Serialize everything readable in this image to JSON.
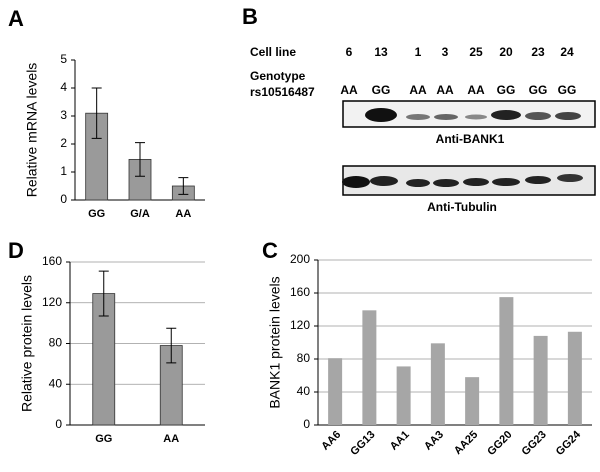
{
  "chart_data": [
    {
      "type": "bar",
      "panel": "A",
      "ylabel": "Relative mRNA levels",
      "categories": [
        "GG",
        "G/A",
        "AA"
      ],
      "values": [
        3.1,
        1.45,
        0.5
      ],
      "errors": [
        0.9,
        0.6,
        0.3
      ],
      "color": "#9a9a9a",
      "ylim": [
        0,
        5
      ],
      "yticks": [
        0,
        1,
        2,
        3,
        4,
        5
      ],
      "grid": false
    },
    {
      "type": "bar",
      "panel": "D",
      "ylabel": "Relative protein levels",
      "categories": [
        "GG",
        "AA"
      ],
      "values": [
        129,
        78
      ],
      "errors": [
        22,
        17
      ],
      "color": "#9a9a9a",
      "ylim": [
        0,
        160
      ],
      "yticks": [
        0,
        40,
        80,
        120,
        160
      ],
      "grid": true
    },
    {
      "type": "bar",
      "panel": "C",
      "ylabel": "BANK1 protein levels",
      "categories": [
        "AA6",
        "GG13",
        "AA1",
        "AA3",
        "AA25",
        "GG20",
        "GG23",
        "GG24"
      ],
      "values": [
        81,
        139,
        71,
        99,
        58,
        155,
        108,
        113
      ],
      "color": "#a6a6a6",
      "ylim": [
        0,
        200
      ],
      "yticks": [
        0,
        40,
        80,
        120,
        160,
        200
      ],
      "grid": true
    }
  ],
  "blot": {
    "panel": "B",
    "cell_line_label": "Cell line",
    "cell_lines": [
      "6",
      "13",
      "1",
      "3",
      "25",
      "20",
      "23",
      "24"
    ],
    "genotype_label": "Genotype",
    "snp": "rs10516487",
    "genotypes": [
      "AA",
      "GG",
      "AA",
      "AA",
      "AA",
      "GG",
      "GG",
      "GG"
    ],
    "antibodies": [
      "Anti-BANK1",
      "Anti-Tubulin"
    ]
  }
}
